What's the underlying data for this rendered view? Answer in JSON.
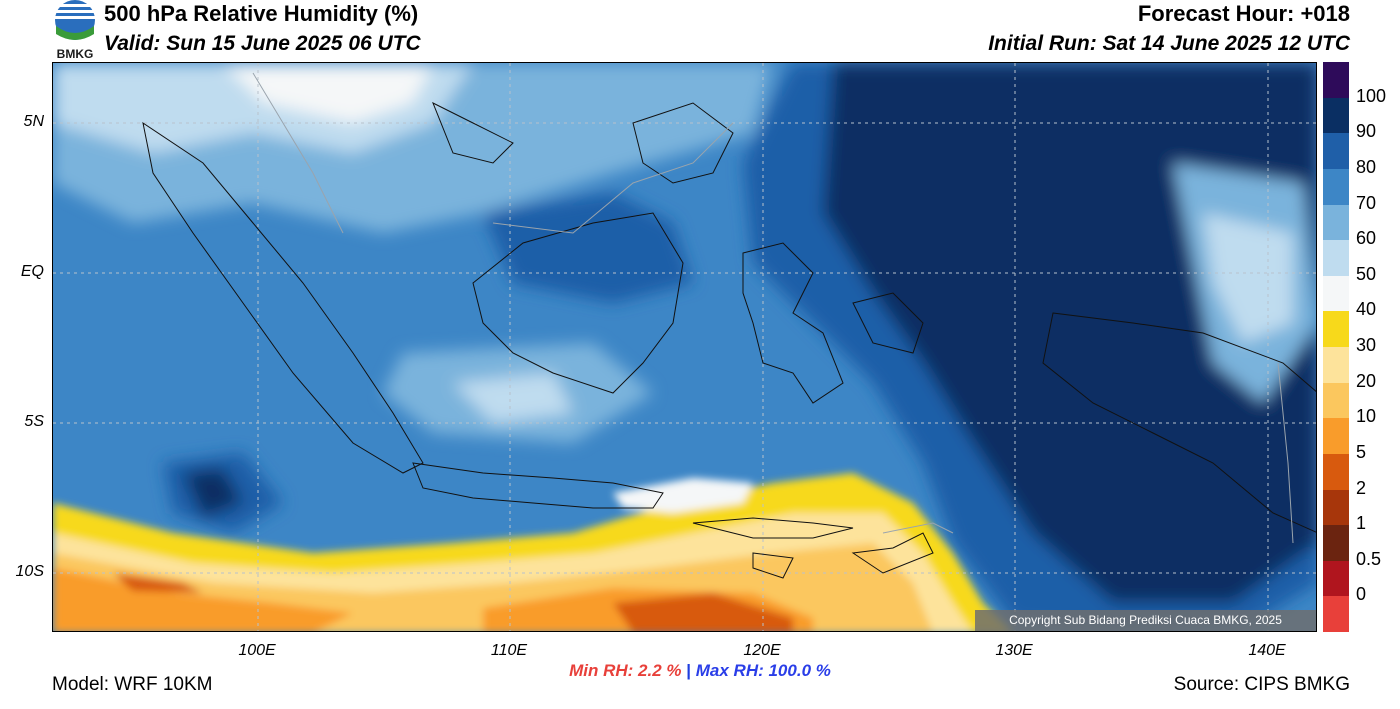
{
  "header": {
    "title": "500 hPa Relative Humidity (%)",
    "valid": "Valid: Sun 15 June 2025 06 UTC",
    "forecast_hour": "Forecast Hour: +018",
    "initial_run": "Initial Run: Sat 14 June 2025 12 UTC"
  },
  "logo": {
    "text": "BMKG",
    "icon": "bmkg-logo-icon"
  },
  "map": {
    "lat_labels": [
      "5N",
      "EQ",
      "5S",
      "10S"
    ],
    "lon_labels": [
      "100E",
      "110E",
      "120E",
      "130E",
      "140E"
    ],
    "copyright": "Copyright Sub Bidang Prediksi Cuaca BMKG, 2025"
  },
  "colorbar": {
    "labels": [
      "100",
      "90",
      "80",
      "70",
      "60",
      "50",
      "40",
      "30",
      "20",
      "10",
      "5",
      "2",
      "1",
      "0.5",
      "0"
    ],
    "colors": [
      "#2e0b5a",
      "#0a2f63",
      "#1f5fa8",
      "#3d86c6",
      "#7ab3dc",
      "#bfdcef",
      "#f5f7f8",
      "#f7d91b",
      "#fde39b",
      "#fbc75e",
      "#f99c2b",
      "#d85a0e",
      "#a7360b",
      "#6b2410",
      "#b0151e",
      "#e8403a"
    ]
  },
  "stats": {
    "min_rh": "Min RH:   2.2 %",
    "separator": "|",
    "max_rh": "Max RH: 100.0 %"
  },
  "footer": {
    "model": "Model: WRF 10KM",
    "source": "Source: CIPS BMKG"
  }
}
